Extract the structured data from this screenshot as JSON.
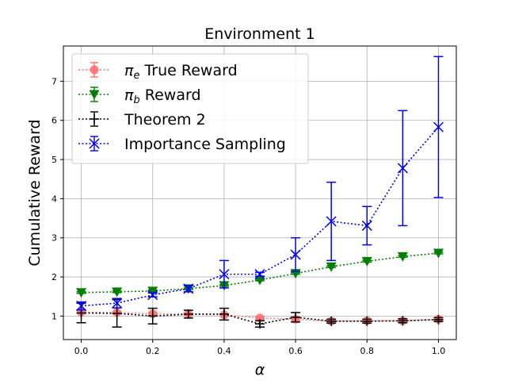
{
  "chart_data": {
    "type": "line",
    "title": "Environment 1",
    "xlabel": "α",
    "ylabel": "Cumulative Reward",
    "xlim": [
      -0.05,
      1.05
    ],
    "ylim": [
      0.4,
      7.9
    ],
    "xticks": [
      0.0,
      0.2,
      0.4,
      0.6,
      0.8,
      1.0
    ],
    "xtick_labels": [
      "0.0",
      "0.2",
      "0.4",
      "0.6",
      "0.8",
      "1.0"
    ],
    "yticks": [
      1,
      2,
      3,
      4,
      5,
      6,
      7
    ],
    "ytick_labels": [
      "1",
      "2",
      "3",
      "4",
      "5",
      "6",
      "7"
    ],
    "grid": true,
    "legend_position": "upper-left",
    "x": [
      0.0,
      0.1,
      0.2,
      0.3,
      0.4,
      0.5,
      0.6,
      0.7,
      0.8,
      0.9,
      1.0
    ],
    "series": [
      {
        "name": "π_e True Reward",
        "legend_symbol": "π",
        "legend_sub": "e",
        "legend_text": " True Reward",
        "color": "#ff6b6b",
        "marker": "circle",
        "values": [
          1.1,
          1.09,
          1.06,
          1.05,
          1.03,
          0.95,
          0.92,
          0.87,
          0.88,
          0.88,
          0.92
        ],
        "errors": [
          0.03,
          0.03,
          0.03,
          0.03,
          0.03,
          0.03,
          0.03,
          0.03,
          0.03,
          0.03,
          0.03
        ]
      },
      {
        "name": "π_b Reward",
        "legend_symbol": "π",
        "legend_sub": "b",
        "legend_text": " Reward",
        "color": "#008000",
        "marker": "triangle-down",
        "values": [
          1.6,
          1.62,
          1.64,
          1.7,
          1.78,
          1.92,
          2.09,
          2.26,
          2.4,
          2.52,
          2.61
        ],
        "errors": [
          0.02,
          0.02,
          0.02,
          0.02,
          0.02,
          0.02,
          0.02,
          0.02,
          0.02,
          0.02,
          0.02
        ]
      },
      {
        "name": "Theorem 2",
        "legend_text": "Theorem 2",
        "color": "#000000",
        "marker": "plus",
        "values": [
          1.08,
          1.07,
          1.0,
          1.05,
          1.05,
          0.8,
          0.97,
          0.87,
          0.87,
          0.88,
          0.91
        ],
        "errors": [
          0.25,
          0.35,
          0.2,
          0.1,
          0.15,
          0.08,
          0.12,
          0.05,
          0.05,
          0.05,
          0.05
        ]
      },
      {
        "name": "Importance Sampling",
        "legend_text": "Importance Sampling",
        "color": "#0000ff",
        "marker": "x",
        "values": [
          1.26,
          1.33,
          1.54,
          1.7,
          2.07,
          2.07,
          2.57,
          3.42,
          3.31,
          4.78,
          5.83
        ],
        "errors": [
          0.1,
          0.12,
          0.05,
          0.08,
          0.35,
          0.05,
          0.43,
          1.0,
          0.49,
          1.47,
          1.8
        ]
      }
    ]
  }
}
